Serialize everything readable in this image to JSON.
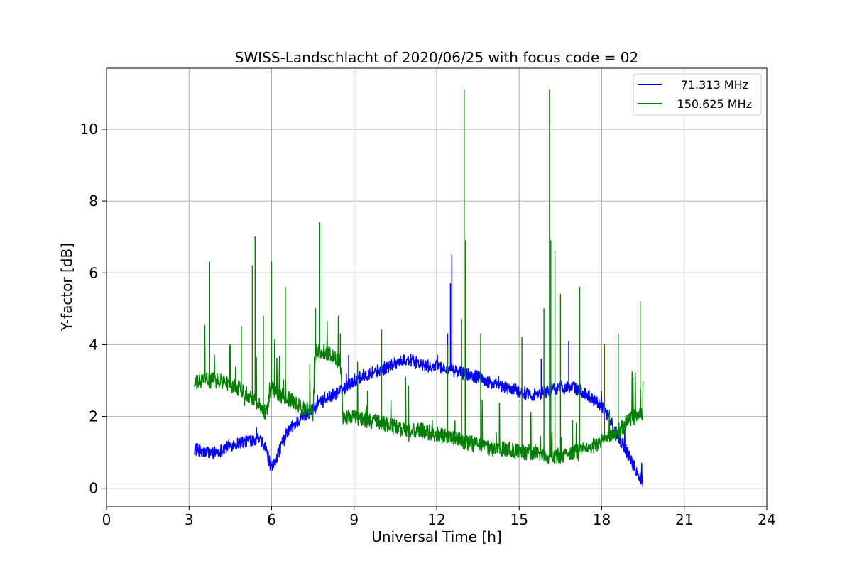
{
  "chart_data": {
    "type": "line",
    "title": "SWISS-Landschlacht of 2020/06/25 with focus code = 02",
    "xlabel": "Universal Time [h]",
    "ylabel": "Y-factor [dB]",
    "xlim": [
      0,
      24
    ],
    "ylim": [
      -0.5,
      11.7
    ],
    "xticks": [
      0,
      3,
      6,
      9,
      12,
      15,
      18,
      21,
      24
    ],
    "yticks": [
      0,
      2,
      4,
      6,
      8,
      10
    ],
    "grid": true,
    "legend_position": "top-right",
    "series": [
      {
        "name": "71.313 MHz",
        "color": "#0000ff",
        "x": [
          3.2,
          3.5,
          4.0,
          4.5,
          5.0,
          5.5,
          5.8,
          6.0,
          6.3,
          6.6,
          7.0,
          7.5,
          8.0,
          8.5,
          9.0,
          9.5,
          10.0,
          10.5,
          11.0,
          11.5,
          12.0,
          12.5,
          13.0,
          13.5,
          14.0,
          14.5,
          15.0,
          15.5,
          16.0,
          16.5,
          17.0,
          17.5,
          18.0,
          18.5,
          19.0,
          19.3,
          19.5
        ],
        "y": [
          1.1,
          1.0,
          1.0,
          1.2,
          1.3,
          1.4,
          1.1,
          0.5,
          1.1,
          1.6,
          1.9,
          2.2,
          2.5,
          2.7,
          3.0,
          3.2,
          3.3,
          3.5,
          3.6,
          3.4,
          3.4,
          3.3,
          3.2,
          3.1,
          2.9,
          2.8,
          2.7,
          2.6,
          2.7,
          2.8,
          2.8,
          2.6,
          2.3,
          1.6,
          0.9,
          0.4,
          0.2
        ],
        "spikes": [
          {
            "x": 8.8,
            "y": 3.7
          },
          {
            "x": 11.6,
            "y": 3.5
          },
          {
            "x": 12.4,
            "y": 4.3
          },
          {
            "x": 12.5,
            "y": 5.7
          },
          {
            "x": 12.55,
            "y": 6.5
          },
          {
            "x": 15.8,
            "y": 3.6
          },
          {
            "x": 16.8,
            "y": 4.1
          }
        ]
      },
      {
        "name": "150.625 MHz",
        "color": "#008000",
        "x": [
          3.2,
          3.5,
          4.0,
          4.5,
          5.0,
          5.5,
          5.8,
          6.0,
          6.3,
          6.6,
          7.0,
          7.5,
          7.6,
          8.0,
          8.5,
          8.6,
          9.0,
          9.5,
          10.0,
          10.5,
          11.0,
          11.5,
          12.0,
          12.5,
          13.0,
          13.5,
          14.0,
          14.5,
          15.0,
          15.5,
          16.0,
          16.5,
          17.0,
          17.5,
          18.0,
          18.5,
          19.0,
          19.5
        ],
        "y": [
          2.9,
          3.0,
          3.0,
          2.9,
          2.7,
          2.4,
          2.1,
          2.8,
          2.6,
          2.5,
          2.3,
          2.1,
          3.8,
          3.8,
          3.5,
          2.0,
          2.0,
          1.9,
          1.8,
          1.7,
          1.6,
          1.6,
          1.5,
          1.4,
          1.3,
          1.2,
          1.1,
          1.1,
          1.0,
          1.0,
          0.9,
          0.9,
          1.0,
          1.1,
          1.3,
          1.5,
          1.9,
          2.1
        ],
        "spikes": [
          {
            "x": 3.75,
            "y": 6.3
          },
          {
            "x": 4.9,
            "y": 4.5
          },
          {
            "x": 5.3,
            "y": 6.2
          },
          {
            "x": 5.4,
            "y": 7.0
          },
          {
            "x": 5.7,
            "y": 4.8
          },
          {
            "x": 6.0,
            "y": 6.3
          },
          {
            "x": 6.5,
            "y": 5.6
          },
          {
            "x": 7.6,
            "y": 5.0
          },
          {
            "x": 7.75,
            "y": 7.4
          },
          {
            "x": 8.5,
            "y": 4.3
          },
          {
            "x": 10.0,
            "y": 4.4
          },
          {
            "x": 12.4,
            "y": 4.0
          },
          {
            "x": 12.9,
            "y": 4.7
          },
          {
            "x": 13.0,
            "y": 11.1
          },
          {
            "x": 13.05,
            "y": 6.9
          },
          {
            "x": 13.6,
            "y": 4.3
          },
          {
            "x": 15.1,
            "y": 4.2
          },
          {
            "x": 15.9,
            "y": 5.0
          },
          {
            "x": 16.1,
            "y": 11.1
          },
          {
            "x": 16.15,
            "y": 6.9
          },
          {
            "x": 16.3,
            "y": 6.6
          },
          {
            "x": 16.5,
            "y": 5.4
          },
          {
            "x": 17.2,
            "y": 5.6
          },
          {
            "x": 18.1,
            "y": 4.0
          },
          {
            "x": 18.6,
            "y": 4.3
          },
          {
            "x": 19.4,
            "y": 5.2
          }
        ]
      }
    ]
  }
}
